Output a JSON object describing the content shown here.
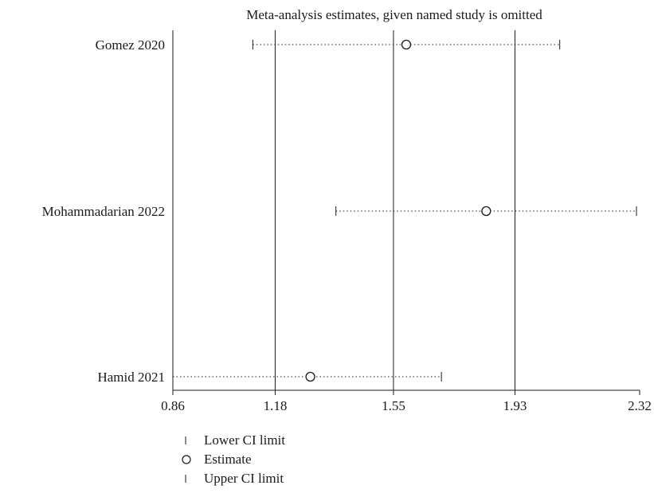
{
  "chart_data": {
    "type": "scatter",
    "title": "Meta-analysis estimates, given named study is omitted",
    "xlabel": "",
    "ylabel": "",
    "xlim": [
      0.86,
      2.32
    ],
    "x_ticks": [
      "0.86",
      "1.18",
      "1.55",
      "1.93",
      "2.32"
    ],
    "x_tick_values": [
      0.86,
      1.18,
      1.55,
      1.93,
      2.32
    ],
    "reference_lines": [
      0.86,
      1.18,
      1.55,
      1.93
    ],
    "studies": [
      {
        "label": "Gomez 2020",
        "lower": 1.11,
        "estimate": 1.59,
        "upper": 2.07
      },
      {
        "label": "Mohammadarian 2022",
        "lower": 1.37,
        "estimate": 1.84,
        "upper": 2.31
      },
      {
        "label": "Hamid 2021",
        "lower": 0.86,
        "estimate": 1.29,
        "upper": 1.7
      }
    ],
    "legend": {
      "position": "bottom-left",
      "items": [
        {
          "symbol": "tick",
          "label": "Lower CI limit"
        },
        {
          "symbol": "circle",
          "label": "Estimate"
        },
        {
          "symbol": "tick",
          "label": "Upper CI limit"
        }
      ]
    },
    "grid": false
  }
}
